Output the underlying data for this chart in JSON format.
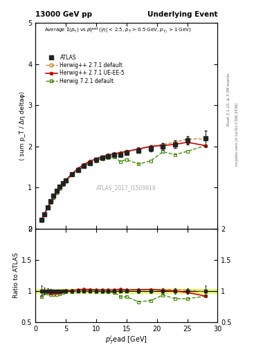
{
  "title_left": "13000 GeV pp",
  "title_right": "Underlying Event",
  "watermark": "ATLAS_2017_I1509919",
  "right_label_top": "Rivet 3.1.10, ≥ 3.3M events",
  "right_label_bottom": "mcplots.cern.ch [arXiv:1306.3436]",
  "ylabel_main": "⟨ sum p_T / Δη deltaφ⟩",
  "ylabel_ratio": "Ratio to ATLAS",
  "xlabel": "$p_T^l$ead [GeV]",
  "ylim_main": [
    0,
    5
  ],
  "ylim_ratio": [
    0.5,
    2.0
  ],
  "xlim": [
    0,
    30
  ],
  "atlas_x": [
    1.0,
    1.5,
    2.0,
    2.5,
    3.0,
    3.5,
    4.0,
    4.5,
    5.0,
    6.0,
    7.0,
    8.0,
    9.0,
    10.0,
    11.0,
    12.0,
    13.0,
    14.0,
    15.0,
    17.0,
    19.0,
    21.0,
    23.0,
    25.0,
    28.0
  ],
  "atlas_y": [
    0.22,
    0.35,
    0.52,
    0.67,
    0.8,
    0.92,
    1.02,
    1.1,
    1.17,
    1.32,
    1.43,
    1.52,
    1.6,
    1.67,
    1.72,
    1.76,
    1.79,
    1.8,
    1.85,
    1.9,
    1.95,
    2.0,
    2.05,
    2.15,
    2.2
  ],
  "atlas_yerr": [
    0.02,
    0.02,
    0.02,
    0.02,
    0.02,
    0.02,
    0.02,
    0.02,
    0.02,
    0.02,
    0.03,
    0.03,
    0.03,
    0.03,
    0.03,
    0.04,
    0.04,
    0.04,
    0.05,
    0.06,
    0.07,
    0.08,
    0.09,
    0.1,
    0.18
  ],
  "hw271def_x": [
    1.0,
    1.5,
    2.0,
    2.5,
    3.0,
    3.5,
    4.0,
    4.5,
    5.0,
    6.0,
    7.0,
    8.0,
    9.0,
    10.0,
    11.0,
    12.0,
    13.0,
    14.0,
    15.0,
    17.0,
    19.0,
    21.0,
    23.0,
    25.0,
    28.0
  ],
  "hw271def_y": [
    0.22,
    0.35,
    0.52,
    0.65,
    0.77,
    0.9,
    1.0,
    1.1,
    1.18,
    1.33,
    1.45,
    1.55,
    1.63,
    1.68,
    1.73,
    1.77,
    1.8,
    1.83,
    1.87,
    1.93,
    2.0,
    2.05,
    2.1,
    2.18,
    2.18
  ],
  "hw271ue_x": [
    1.0,
    1.5,
    2.0,
    2.5,
    3.0,
    3.5,
    4.0,
    4.5,
    5.0,
    6.0,
    7.0,
    8.0,
    9.0,
    10.0,
    11.0,
    12.0,
    13.0,
    14.0,
    15.0,
    17.0,
    19.0,
    21.0,
    23.0,
    25.0,
    28.0
  ],
  "hw271ue_y": [
    0.22,
    0.35,
    0.52,
    0.65,
    0.78,
    0.9,
    1.0,
    1.1,
    1.18,
    1.33,
    1.46,
    1.56,
    1.64,
    1.7,
    1.75,
    1.79,
    1.82,
    1.85,
    1.88,
    1.94,
    2.0,
    2.02,
    2.05,
    2.1,
    2.02
  ],
  "hw721def_x": [
    1.0,
    1.5,
    2.0,
    2.5,
    3.0,
    3.5,
    4.0,
    4.5,
    5.0,
    6.0,
    7.0,
    8.0,
    9.0,
    10.0,
    11.0,
    12.0,
    13.0,
    14.0,
    15.0,
    17.0,
    19.0,
    21.0,
    23.0,
    25.0,
    28.0
  ],
  "hw721def_y": [
    0.2,
    0.34,
    0.5,
    0.63,
    0.75,
    0.87,
    0.97,
    1.07,
    1.15,
    1.3,
    1.42,
    1.52,
    1.6,
    1.65,
    1.7,
    1.73,
    1.75,
    1.63,
    1.68,
    1.57,
    1.65,
    1.87,
    1.8,
    1.88,
    2.02
  ],
  "color_atlas": "#222222",
  "color_hw271def": "#cc8833",
  "color_hw271ue": "#cc0000",
  "color_hw721def": "#448800",
  "band_color": "#ccee00",
  "band_alpha": 0.45,
  "band_y1": 0.965,
  "band_y2": 1.035
}
